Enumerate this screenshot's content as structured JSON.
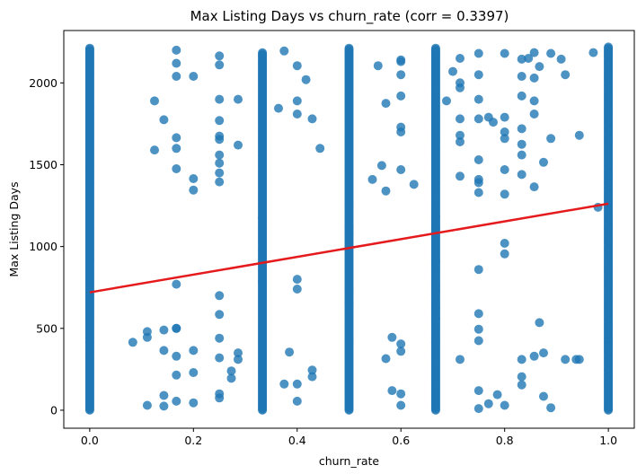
{
  "chart_data": {
    "type": "scatter",
    "title": "Max Listing Days vs churn_rate (corr = 0.3397)",
    "xlabel": "churn_rate",
    "ylabel": "Max Listing Days",
    "xlim": [
      -0.05,
      1.05
    ],
    "ylim": [
      -110,
      2320
    ],
    "x_ticks": [
      0.0,
      0.2,
      0.4,
      0.6,
      0.8,
      1.0
    ],
    "x_tick_labels": [
      "0.0",
      "0.2",
      "0.4",
      "0.6",
      "0.8",
      "1.0"
    ],
    "y_ticks": [
      0,
      500,
      1000,
      1500,
      2000
    ],
    "y_tick_labels": [
      "0",
      "500",
      "1000",
      "1500",
      "2000"
    ],
    "grid": false,
    "legend": "none",
    "point_color": "#1f77b4",
    "regression_color": "#e41a1c",
    "regression_line": {
      "x": [
        0.0,
        1.0
      ],
      "y": [
        720,
        1262
      ]
    },
    "vertical_clusters": [
      {
        "x": 0.0,
        "y_min": 0,
        "y_max": 2215
      },
      {
        "x": 0.333,
        "y_min": 0,
        "y_max": 2190
      },
      {
        "x": 0.5,
        "y_min": 0,
        "y_max": 2215
      },
      {
        "x": 0.667,
        "y_min": 0,
        "y_max": 2215
      },
      {
        "x": 1.0,
        "y_min": 0,
        "y_max": 2220
      }
    ],
    "points": [
      [
        0.083,
        415
      ],
      [
        0.111,
        30
      ],
      [
        0.111,
        480
      ],
      [
        0.111,
        445
      ],
      [
        0.125,
        1890
      ],
      [
        0.125,
        1590
      ],
      [
        0.143,
        1775
      ],
      [
        0.143,
        490
      ],
      [
        0.143,
        365
      ],
      [
        0.143,
        90
      ],
      [
        0.143,
        25
      ],
      [
        0.167,
        2200
      ],
      [
        0.167,
        2120
      ],
      [
        0.167,
        2040
      ],
      [
        0.167,
        1665
      ],
      [
        0.167,
        1600
      ],
      [
        0.167,
        1475
      ],
      [
        0.167,
        770
      ],
      [
        0.167,
        500
      ],
      [
        0.167,
        500
      ],
      [
        0.167,
        330
      ],
      [
        0.167,
        215
      ],
      [
        0.167,
        55
      ],
      [
        0.2,
        2040
      ],
      [
        0.2,
        1415
      ],
      [
        0.2,
        1345
      ],
      [
        0.2,
        365
      ],
      [
        0.2,
        230
      ],
      [
        0.2,
        45
      ],
      [
        0.25,
        2165
      ],
      [
        0.25,
        2110
      ],
      [
        0.25,
        1900
      ],
      [
        0.25,
        1770
      ],
      [
        0.25,
        1675
      ],
      [
        0.25,
        1655
      ],
      [
        0.25,
        1560
      ],
      [
        0.25,
        1510
      ],
      [
        0.25,
        1450
      ],
      [
        0.25,
        1395
      ],
      [
        0.25,
        700
      ],
      [
        0.25,
        585
      ],
      [
        0.25,
        440
      ],
      [
        0.25,
        320
      ],
      [
        0.25,
        100
      ],
      [
        0.25,
        75
      ],
      [
        0.273,
        240
      ],
      [
        0.273,
        195
      ],
      [
        0.286,
        1900
      ],
      [
        0.286,
        1620
      ],
      [
        0.286,
        350
      ],
      [
        0.286,
        310
      ],
      [
        0.333,
        1175
      ],
      [
        0.333,
        785
      ],
      [
        0.364,
        1845
      ],
      [
        0.375,
        2195
      ],
      [
        0.375,
        160
      ],
      [
        0.385,
        355
      ],
      [
        0.4,
        2105
      ],
      [
        0.4,
        1890
      ],
      [
        0.4,
        1810
      ],
      [
        0.4,
        800
      ],
      [
        0.4,
        740
      ],
      [
        0.4,
        160
      ],
      [
        0.4,
        55
      ],
      [
        0.417,
        2020
      ],
      [
        0.429,
        1780
      ],
      [
        0.429,
        245
      ],
      [
        0.429,
        205
      ],
      [
        0.444,
        1600
      ],
      [
        0.5,
        1260
      ],
      [
        0.5,
        1120
      ],
      [
        0.5,
        1080
      ],
      [
        0.5,
        740
      ],
      [
        0.5,
        650
      ],
      [
        0.545,
        1410
      ],
      [
        0.556,
        2105
      ],
      [
        0.563,
        1495
      ],
      [
        0.571,
        1875
      ],
      [
        0.571,
        1340
      ],
      [
        0.571,
        315
      ],
      [
        0.583,
        445
      ],
      [
        0.583,
        120
      ],
      [
        0.6,
        2140
      ],
      [
        0.6,
        2130
      ],
      [
        0.6,
        2050
      ],
      [
        0.6,
        1920
      ],
      [
        0.6,
        1730
      ],
      [
        0.6,
        1700
      ],
      [
        0.6,
        1470
      ],
      [
        0.6,
        405
      ],
      [
        0.6,
        360
      ],
      [
        0.6,
        100
      ],
      [
        0.6,
        30
      ],
      [
        0.625,
        1380
      ],
      [
        0.667,
        1185
      ],
      [
        0.667,
        1115
      ],
      [
        0.667,
        905
      ],
      [
        0.667,
        760
      ],
      [
        0.667,
        730
      ],
      [
        0.667,
        625
      ],
      [
        0.667,
        560
      ],
      [
        0.688,
        1890
      ],
      [
        0.7,
        2070
      ],
      [
        0.714,
        2150
      ],
      [
        0.714,
        2000
      ],
      [
        0.714,
        1970
      ],
      [
        0.714,
        1780
      ],
      [
        0.714,
        1680
      ],
      [
        0.714,
        1640
      ],
      [
        0.714,
        1430
      ],
      [
        0.714,
        310
      ],
      [
        0.75,
        2180
      ],
      [
        0.75,
        2050
      ],
      [
        0.75,
        1900
      ],
      [
        0.75,
        1780
      ],
      [
        0.75,
        1530
      ],
      [
        0.75,
        1410
      ],
      [
        0.75,
        1390
      ],
      [
        0.75,
        1330
      ],
      [
        0.75,
        860
      ],
      [
        0.75,
        590
      ],
      [
        0.75,
        495
      ],
      [
        0.75,
        425
      ],
      [
        0.75,
        120
      ],
      [
        0.75,
        10
      ],
      [
        0.769,
        1790
      ],
      [
        0.769,
        40
      ],
      [
        0.778,
        1760
      ],
      [
        0.786,
        95
      ],
      [
        0.8,
        2180
      ],
      [
        0.8,
        1790
      ],
      [
        0.8,
        1700
      ],
      [
        0.8,
        1660
      ],
      [
        0.8,
        1470
      ],
      [
        0.8,
        1320
      ],
      [
        0.8,
        1020
      ],
      [
        0.8,
        955
      ],
      [
        0.8,
        30
      ],
      [
        0.833,
        2145
      ],
      [
        0.833,
        2040
      ],
      [
        0.833,
        1920
      ],
      [
        0.833,
        1720
      ],
      [
        0.833,
        1625
      ],
      [
        0.833,
        1560
      ],
      [
        0.833,
        1440
      ],
      [
        0.833,
        310
      ],
      [
        0.833,
        205
      ],
      [
        0.833,
        155
      ],
      [
        0.846,
        2150
      ],
      [
        0.857,
        2185
      ],
      [
        0.857,
        2030
      ],
      [
        0.857,
        1890
      ],
      [
        0.857,
        1810
      ],
      [
        0.857,
        1365
      ],
      [
        0.857,
        330
      ],
      [
        0.867,
        2100
      ],
      [
        0.867,
        535
      ],
      [
        0.875,
        1515
      ],
      [
        0.875,
        350
      ],
      [
        0.875,
        85
      ],
      [
        0.889,
        2180
      ],
      [
        0.889,
        1660
      ],
      [
        0.889,
        15
      ],
      [
        0.909,
        2145
      ],
      [
        0.917,
        2050
      ],
      [
        0.917,
        310
      ],
      [
        0.938,
        310
      ],
      [
        0.944,
        1680
      ],
      [
        0.944,
        310
      ],
      [
        0.971,
        2185
      ],
      [
        0.98,
        1240
      ]
    ]
  }
}
